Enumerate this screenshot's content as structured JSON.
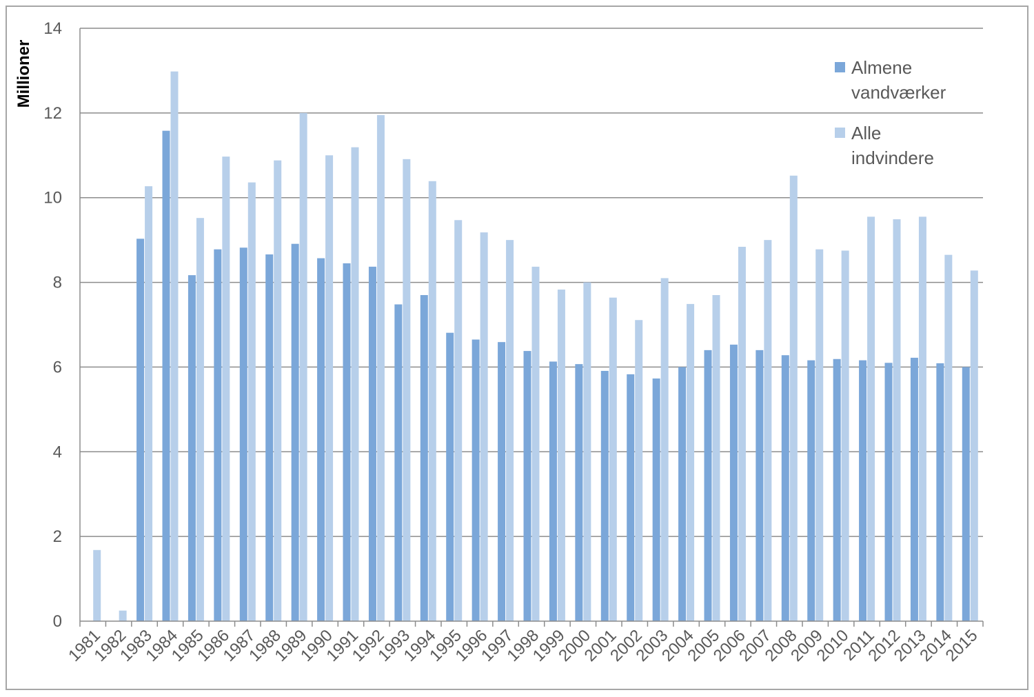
{
  "chart_data": {
    "type": "bar",
    "ylabel": "Millioner",
    "ylim": [
      0,
      14
    ],
    "yticks": [
      0,
      2,
      4,
      6,
      8,
      10,
      12,
      14
    ],
    "grid": true,
    "legend_position": "top-right",
    "categories": [
      "1981",
      "1982",
      "1983",
      "1984",
      "1985",
      "1986",
      "1987",
      "1988",
      "1989",
      "1990",
      "1991",
      "1992",
      "1993",
      "1994",
      "1995",
      "1996",
      "1997",
      "1998",
      "1999",
      "2000",
      "2001",
      "2002",
      "2003",
      "2004",
      "2005",
      "2006",
      "2007",
      "2008",
      "2009",
      "2010",
      "2011",
      "2012",
      "2013",
      "2014",
      "2015"
    ],
    "series": [
      {
        "name": "Almene vandværker",
        "legend_lines": [
          "Almene",
          "vandværker"
        ],
        "color": "#7ba7d9",
        "values": [
          0,
          0,
          9.03,
          11.58,
          8.17,
          8.78,
          8.82,
          8.66,
          8.91,
          8.57,
          8.45,
          8.37,
          7.48,
          7.7,
          6.81,
          6.65,
          6.59,
          6.38,
          6.13,
          6.07,
          5.91,
          5.83,
          5.73,
          6.0,
          6.4,
          6.53,
          6.4,
          6.28,
          6.16,
          6.19,
          6.16,
          6.1,
          6.22,
          6.09,
          6.0
        ]
      },
      {
        "name": "Alle indvindere",
        "legend_lines": [
          "Alle",
          "indvindere"
        ],
        "color": "#b7cfea",
        "values": [
          1.68,
          0.25,
          10.27,
          12.98,
          9.52,
          10.97,
          10.36,
          10.88,
          12.0,
          11.0,
          11.19,
          11.95,
          10.91,
          10.39,
          9.47,
          9.18,
          9.0,
          8.37,
          7.83,
          8.0,
          7.64,
          7.11,
          8.1,
          7.49,
          7.7,
          8.84,
          9.0,
          10.52,
          8.78,
          8.75,
          9.55,
          9.49,
          9.55,
          8.65,
          8.28
        ]
      }
    ]
  }
}
